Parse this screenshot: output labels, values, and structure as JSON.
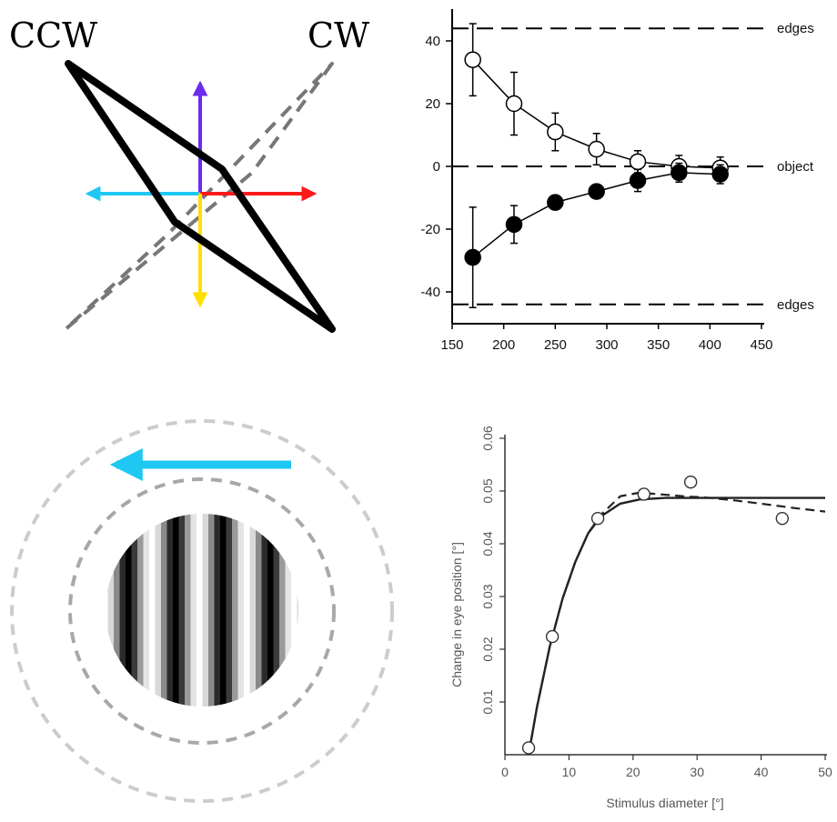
{
  "panel_a": {
    "label_ccw": "CCW",
    "label_cw": "CW",
    "colors": {
      "up": "#6a2cf0",
      "right": "#ff1a1a",
      "left": "#1ec8f2",
      "down": "#ffe000",
      "ccw": "#000000",
      "cw": "#777777"
    }
  },
  "panel_c": {
    "colors": {
      "arrow": "#1ec8f2",
      "outer_ring": "#cccccc",
      "inner_ring": "#a8a8a8"
    }
  },
  "chart_data": [
    {
      "type": "scatter",
      "xlim": [
        150,
        450
      ],
      "ylim": [
        -50,
        48
      ],
      "x_ticks": [
        "150",
        "200",
        "250",
        "300",
        "350",
        "400",
        "450"
      ],
      "y_ticks": [
        "40",
        "20",
        "0",
        "-20",
        "-40"
      ],
      "reference_lines": [
        {
          "label": "edges",
          "y": 44
        },
        {
          "label": "object",
          "y": 0
        },
        {
          "label": "edges",
          "y": -44
        }
      ],
      "series": [
        {
          "marker": "open-circle",
          "x": [
            170,
            210,
            250,
            290,
            330,
            370,
            410
          ],
          "y": [
            34,
            20,
            11,
            5.5,
            1.5,
            0,
            -0.5
          ],
          "err": [
            11.5,
            10,
            6,
            5,
            3.5,
            3.5,
            3.5
          ]
        },
        {
          "marker": "filled-circle",
          "x": [
            170,
            210,
            250,
            290,
            330,
            370,
            410
          ],
          "y": [
            -29,
            -18.5,
            -11.5,
            -8,
            -4.5,
            -2,
            -2.5
          ],
          "err": [
            16,
            6,
            0,
            0,
            3.5,
            3,
            3
          ]
        }
      ]
    },
    {
      "type": "scatter",
      "xlabel": "Stimulus diameter [°]",
      "ylabel": "Change in eye position [°]",
      "xlim": [
        0,
        50
      ],
      "ylim": [
        0,
        0.06
      ],
      "x_ticks": [
        "0",
        "10",
        "20",
        "30",
        "40",
        "50"
      ],
      "y_ticks": [
        "0.01",
        "0.02",
        "0.03",
        "0.04",
        "0.05",
        "0.06"
      ],
      "points": {
        "x": [
          3.7,
          7.4,
          14.5,
          21.7,
          29,
          43.3
        ],
        "y": [
          0.0013,
          0.0224,
          0.0448,
          0.0494,
          0.0517,
          0.0448
        ],
        "err": [
          0,
          0,
          0,
          0.001,
          0.0012,
          0.001
        ]
      },
      "fit_solid": {
        "x": [
          3.7,
          5,
          7,
          9,
          11,
          13,
          15,
          18,
          21,
          25,
          30,
          35,
          40,
          45,
          50
        ],
        "y": [
          0,
          0.009,
          0.0205,
          0.0296,
          0.0366,
          0.042,
          0.0452,
          0.0476,
          0.0484,
          0.0487,
          0.0487,
          0.0487,
          0.0487,
          0.0487,
          0.0487
        ]
      },
      "fit_dashed": {
        "x": [
          3.7,
          5,
          7,
          9,
          11,
          13,
          15,
          18,
          21,
          25,
          28,
          32,
          36,
          40,
          45,
          50
        ],
        "y": [
          0,
          0.009,
          0.0205,
          0.0296,
          0.0366,
          0.042,
          0.0455,
          0.049,
          0.0497,
          0.0493,
          0.049,
          0.0487,
          0.0482,
          0.0476,
          0.0468,
          0.0461
        ]
      }
    }
  ]
}
